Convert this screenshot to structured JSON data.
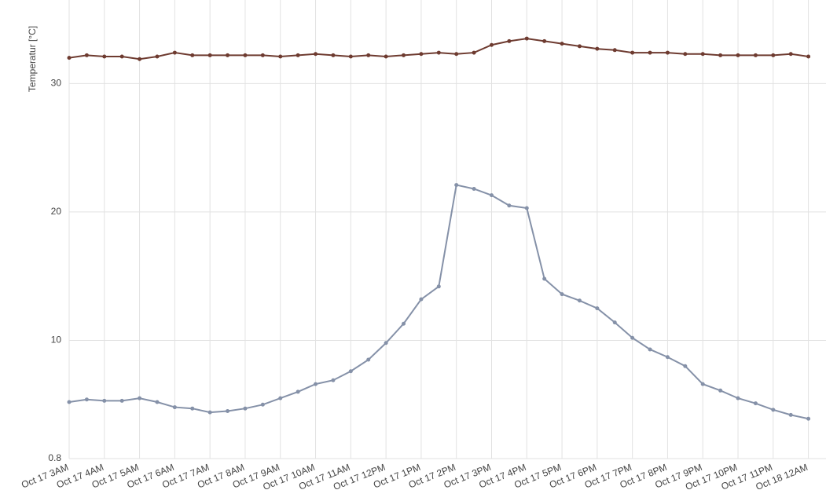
{
  "chart_data": {
    "type": "line",
    "y_label": "Temperatur [°C]",
    "x": [
      3,
      3.5,
      4,
      4.5,
      5,
      5.5,
      6,
      6.5,
      7,
      7.5,
      8,
      8.5,
      9,
      9.5,
      10,
      10.5,
      11,
      11.5,
      12,
      12.5,
      13,
      13.5,
      14,
      14.5,
      15,
      15.5,
      16,
      16.5,
      17,
      17.5,
      18,
      18.5,
      19,
      19.5,
      20,
      20.5,
      21,
      21.5,
      22,
      22.5,
      23,
      23.5,
      24
    ],
    "series": [
      {
        "color": "#6e3b30",
        "values": [
          32.0,
          32.2,
          32.1,
          32.1,
          31.9,
          32.1,
          32.4,
          32.2,
          32.2,
          32.2,
          32.2,
          32.2,
          32.1,
          32.2,
          32.3,
          32.2,
          32.1,
          32.2,
          32.1,
          32.2,
          32.3,
          32.4,
          32.3,
          32.4,
          33.0,
          33.3,
          33.5,
          33.3,
          33.1,
          32.9,
          32.7,
          32.6,
          32.4,
          32.4,
          32.4,
          32.3,
          32.3,
          32.2,
          32.2,
          32.2,
          32.2,
          32.3,
          32.1
        ]
      },
      {
        "color": "#8591a8",
        "values": [
          5.2,
          5.4,
          5.3,
          5.3,
          5.5,
          5.2,
          4.8,
          4.7,
          4.4,
          4.5,
          4.7,
          5.0,
          5.5,
          6.0,
          6.6,
          6.9,
          7.6,
          8.5,
          9.8,
          11.3,
          13.2,
          14.2,
          22.1,
          21.8,
          21.3,
          20.5,
          20.3,
          14.8,
          13.6,
          13.1,
          12.5,
          11.4,
          10.2,
          9.3,
          8.7,
          8.0,
          6.6,
          6.1,
          5.5,
          5.1,
          4.6,
          4.2,
          3.9
        ]
      }
    ],
    "xlim": [
      3,
      24.5
    ],
    "xticks": [
      {
        "value": 3,
        "label": "Oct 17 3AM"
      },
      {
        "value": 4,
        "label": "Oct 17 4AM"
      },
      {
        "value": 5,
        "label": "Oct 17 5AM"
      },
      {
        "value": 6,
        "label": "Oct 17 6AM"
      },
      {
        "value": 7,
        "label": "Oct 17 7AM"
      },
      {
        "value": 8,
        "label": "Oct 17 8AM"
      },
      {
        "value": 9,
        "label": "Oct 17 9AM"
      },
      {
        "value": 10,
        "label": "Oct 17 10AM"
      },
      {
        "value": 11,
        "label": "Oct 17 11AM"
      },
      {
        "value": 12,
        "label": "Oct 17 12PM"
      },
      {
        "value": 13,
        "label": "Oct 17 1PM"
      },
      {
        "value": 14,
        "label": "Oct 17 2PM"
      },
      {
        "value": 15,
        "label": "Oct 17 3PM"
      },
      {
        "value": 16,
        "label": "Oct 17 4PM"
      },
      {
        "value": 17,
        "label": "Oct 17 5PM"
      },
      {
        "value": 18,
        "label": "Oct 17 6PM"
      },
      {
        "value": 19,
        "label": "Oct 17 7PM"
      },
      {
        "value": 20,
        "label": "Oct 17 8PM"
      },
      {
        "value": 21,
        "label": "Oct 17 9PM"
      },
      {
        "value": 22,
        "label": "Oct 17 10PM"
      },
      {
        "value": 23,
        "label": "Oct 17 11PM"
      },
      {
        "value": 24,
        "label": "Oct 18 12AM"
      }
    ],
    "ylim": [
      0.8,
      36.5
    ],
    "yticks": [
      0.8,
      10,
      20,
      30
    ],
    "grid": true
  }
}
